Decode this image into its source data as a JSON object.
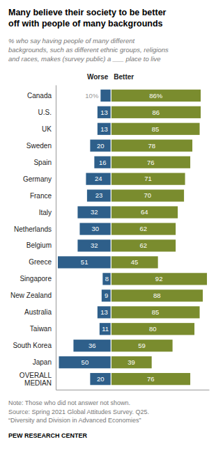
{
  "chart_data": {
    "type": "bar",
    "orientation": "horizontal",
    "title": "Many believe their society to be better\noff with people of many backgrounds",
    "subtitle": "% who say having people of many different\nbackgrounds, such as different ethnic groups, religions\nand races, makes (survey public) a ___ place to live",
    "annotations": [
      "Note: Those who did not answer not shown.\nSource: Spring 2021 Global Attitudes Survey. Q25.\n“Diversity and Division in Advanced Economies”",
      "PEW RESEARCH CENTER"
    ],
    "categories": [
      "Canada",
      "U.S.",
      "UK",
      "Sweden",
      "Spain",
      "Germany",
      "France",
      "Italy",
      "Netherlands",
      "Belgium",
      "Greece",
      "Singapore",
      "New Zealand",
      "Australia",
      "Taiwan",
      "South Korea",
      "Japan",
      "OVERALL\nMEDIAN"
    ],
    "series": [
      {
        "name": "Worse",
        "color": "#2E5F8A",
        "values": [
          10,
          13,
          13,
          20,
          16,
          24,
          23,
          32,
          30,
          32,
          51,
          8,
          9,
          13,
          11,
          36,
          50,
          20
        ],
        "value_labels": [
          "10%",
          "13",
          "13",
          "20",
          "16",
          "24",
          "23",
          "32",
          "30",
          "32",
          "51",
          "8",
          "9",
          "13",
          "11",
          "36",
          "50",
          "20"
        ]
      },
      {
        "name": "Better",
        "color": "#7A8C2E",
        "values": [
          86,
          86,
          85,
          78,
          76,
          71,
          70,
          64,
          62,
          62,
          45,
          92,
          88,
          85,
          80,
          59,
          39,
          76
        ],
        "value_labels": [
          "86%",
          "86",
          "85",
          "78",
          "76",
          "71",
          "70",
          "64",
          "62",
          "62",
          "45",
          "92",
          "88",
          "85",
          "80",
          "59",
          "39",
          "76"
        ]
      }
    ],
    "xlim": [
      -53,
      94
    ],
    "data_labels": true,
    "tick_labels": "y"
  }
}
